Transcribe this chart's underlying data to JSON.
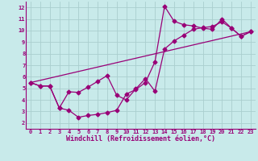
{
  "background_color": "#c8eaea",
  "grid_color": "#aacece",
  "line_color": "#990077",
  "xlim": [
    -0.5,
    23.5
  ],
  "ylim": [
    1.5,
    12.5
  ],
  "xticks": [
    0,
    1,
    2,
    3,
    4,
    5,
    6,
    7,
    8,
    9,
    10,
    11,
    12,
    13,
    14,
    15,
    16,
    17,
    18,
    19,
    20,
    21,
    22,
    23
  ],
  "yticks": [
    2,
    3,
    4,
    5,
    6,
    7,
    8,
    9,
    10,
    11,
    12
  ],
  "xlabel": "Windchill (Refroidissement éolien,°C)",
  "curve1_x": [
    0,
    1,
    2,
    3,
    4,
    5,
    6,
    7,
    8,
    9,
    10,
    11,
    12,
    13,
    14,
    15,
    16,
    17,
    18,
    19,
    20,
    21,
    22,
    23
  ],
  "curve1_y": [
    5.5,
    5.2,
    5.2,
    3.3,
    3.1,
    2.5,
    2.65,
    2.75,
    2.9,
    3.1,
    4.5,
    4.9,
    5.5,
    7.3,
    12.1,
    10.8,
    10.5,
    10.4,
    10.2,
    10.1,
    11.0,
    10.2,
    9.5,
    9.9
  ],
  "curve2_x": [
    0,
    1,
    2,
    3,
    4,
    5,
    6,
    7,
    8,
    9,
    10,
    11,
    12,
    13,
    14,
    15,
    16,
    17,
    18,
    19,
    20,
    21,
    22,
    23
  ],
  "curve2_y": [
    5.5,
    5.2,
    5.2,
    3.3,
    4.7,
    4.65,
    5.1,
    5.6,
    6.1,
    4.4,
    4.0,
    4.95,
    5.85,
    4.75,
    8.4,
    9.1,
    9.6,
    10.1,
    10.25,
    10.35,
    10.75,
    10.2,
    9.5,
    9.9
  ],
  "curve3_x": [
    0,
    23
  ],
  "curve3_y": [
    5.5,
    9.9
  ],
  "marker_size": 2.5,
  "linewidth": 0.9,
  "tick_fontsize": 5.0,
  "label_fontsize": 6.0
}
